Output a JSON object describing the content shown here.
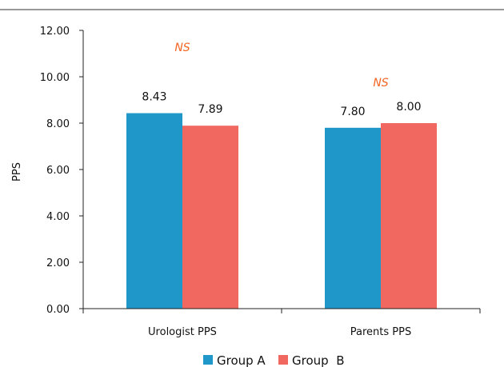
{
  "colors": {
    "group_a": "#1f97c8",
    "group_b": "#f0685f",
    "annotation": "#f26522",
    "axis": "#222222",
    "top_rule": "#333333"
  },
  "chart_data": {
    "type": "bar",
    "categories": [
      "Urologist PPS",
      "Parents PPS"
    ],
    "series": [
      {
        "name": "Group A",
        "values": [
          8.43,
          7.8
        ],
        "labels": [
          "8.43",
          "7.80"
        ]
      },
      {
        "name": "Group  B",
        "values": [
          7.89,
          8.0
        ],
        "labels": [
          "7.89",
          "8.00"
        ]
      }
    ],
    "ylabel": "PPS",
    "xlabel": "",
    "title": "",
    "ylim": [
      0,
      12
    ],
    "yticks": [
      "0.00",
      "2.00",
      "4.00",
      "6.00",
      "8.00",
      "10.00",
      "12.00"
    ],
    "annotations": [
      "NS",
      "NS"
    ],
    "grid": false,
    "legend_position": "bottom"
  }
}
